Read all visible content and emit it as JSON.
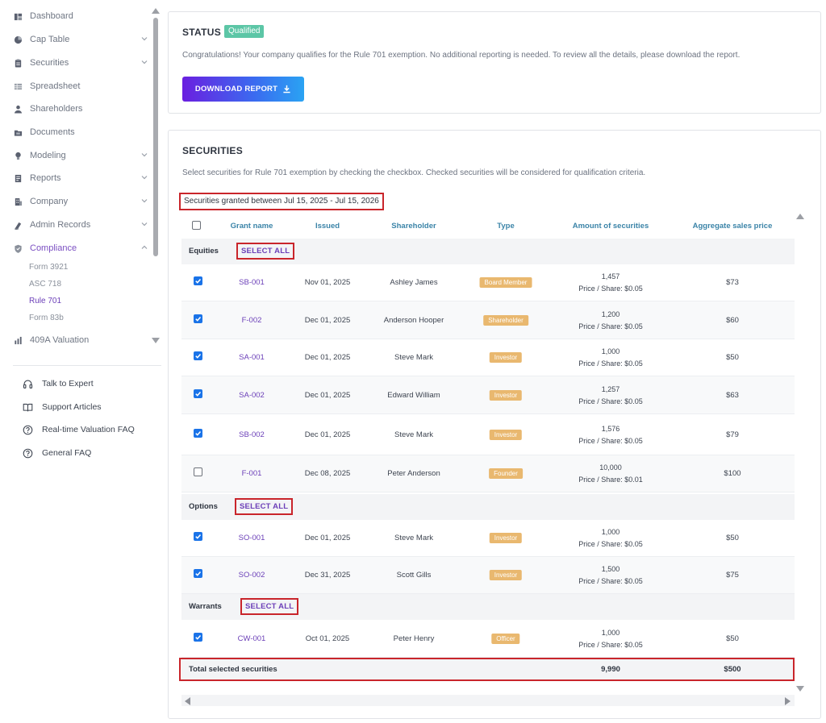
{
  "sidebar": {
    "nav": [
      {
        "label": "Dashboard",
        "icon": "dashboard-icon",
        "chevron": false
      },
      {
        "label": "Cap Table",
        "icon": "pie-chart-icon",
        "chevron": true
      },
      {
        "label": "Securities",
        "icon": "clipboard-icon",
        "chevron": true
      },
      {
        "label": "Spreadsheet",
        "icon": "spreadsheet-icon",
        "chevron": false
      },
      {
        "label": "Shareholders",
        "icon": "user-icon",
        "chevron": false
      },
      {
        "label": "Documents",
        "icon": "folder-icon",
        "chevron": false
      },
      {
        "label": "Modeling",
        "icon": "lightbulb-icon",
        "chevron": true
      },
      {
        "label": "Reports",
        "icon": "report-icon",
        "chevron": true
      },
      {
        "label": "Company",
        "icon": "building-icon",
        "chevron": true
      },
      {
        "label": "Admin Records",
        "icon": "records-icon",
        "chevron": true
      },
      {
        "label": "Compliance",
        "icon": "shield-icon",
        "chevron": true
      },
      {
        "label": "409A Valuation",
        "icon": "valuation-icon",
        "chevron": false
      }
    ],
    "compliance_sub": [
      "Form 3921",
      "ASC 718",
      "Rule 701",
      "Form 83b"
    ],
    "help": [
      "Talk to Expert",
      "Support Articles",
      "Real-time Valuation FAQ",
      "General FAQ"
    ]
  },
  "status": {
    "title": "STATUS",
    "badge": "Qualified",
    "message": "Congratulations! Your company qualifies for the Rule 701 exemption. No additional reporting is needed. To review all the details, please download the report.",
    "download_label": "DOWNLOAD REPORT"
  },
  "securities": {
    "title": "SECURITIES",
    "description": "Select securities for Rule 701 exemption by checking the checkbox. Checked securities will be considered for qualification criteria.",
    "range": "Securities granted between Jul 15, 2025 - Jul 15, 2026",
    "columns": [
      "Grant name",
      "Issued",
      "Shareholder",
      "Type",
      "Amount of securities",
      "Aggregate sales price"
    ],
    "select_all_label": "SELECT ALL",
    "groups": [
      {
        "label": "Equities",
        "rows": [
          {
            "checked": true,
            "grant": "SB-001",
            "issued": "Nov 01, 2025",
            "shareholder": "Ashley James",
            "type": "Board Member",
            "amount": "1,457",
            "price": "Price / Share: $0.05",
            "aggregate": "$73"
          },
          {
            "checked": true,
            "grant": "F-002",
            "issued": "Dec 01, 2025",
            "shareholder": "Anderson Hooper",
            "type": "Shareholder",
            "amount": "1,200",
            "price": "Price / Share: $0.05",
            "aggregate": "$60"
          },
          {
            "checked": true,
            "grant": "SA-001",
            "issued": "Dec 01, 2025",
            "shareholder": "Steve Mark",
            "type": "Investor",
            "amount": "1,000",
            "price": "Price / Share: $0.05",
            "aggregate": "$50"
          },
          {
            "checked": true,
            "grant": "SA-002",
            "issued": "Dec 01, 2025",
            "shareholder": "Edward William",
            "type": "Investor",
            "amount": "1,257",
            "price": "Price / Share: $0.05",
            "aggregate": "$63"
          },
          {
            "checked": true,
            "grant": "SB-002",
            "issued": "Dec 01, 2025",
            "shareholder": "Steve Mark",
            "type": "Investor",
            "amount": "1,576",
            "price": "Price / Share: $0.05",
            "aggregate": "$79"
          },
          {
            "checked": false,
            "grant": "F-001",
            "issued": "Dec 08, 2025",
            "shareholder": "Peter Anderson",
            "type": "Founder",
            "amount": "10,000",
            "price": "Price / Share: $0.01",
            "aggregate": "$100"
          }
        ]
      },
      {
        "label": "Options",
        "rows": [
          {
            "checked": true,
            "grant": "SO-001",
            "issued": "Dec 01, 2025",
            "shareholder": "Steve Mark",
            "type": "Investor",
            "amount": "1,000",
            "price": "Price / Share: $0.05",
            "aggregate": "$50"
          },
          {
            "checked": true,
            "grant": "SO-002",
            "issued": "Dec 31, 2025",
            "shareholder": "Scott Gills",
            "type": "Investor",
            "amount": "1,500",
            "price": "Price / Share: $0.05",
            "aggregate": "$75"
          }
        ]
      },
      {
        "label": "Warrants",
        "rows": [
          {
            "checked": true,
            "grant": "CW-001",
            "issued": "Oct 01, 2025",
            "shareholder": "Peter Henry",
            "type": "Officer",
            "amount": "1,000",
            "price": "Price / Share: $0.05",
            "aggregate": "$50"
          }
        ]
      }
    ],
    "total": {
      "label": "Total selected securities",
      "amount": "9,990",
      "aggregate": "$500"
    }
  },
  "colors": {
    "accent": "#6b3fb8",
    "qualified": "#5cc6a6",
    "tag": "#e9b86f",
    "header_text": "#3b84a8",
    "highlight_border": "#c9252b"
  }
}
